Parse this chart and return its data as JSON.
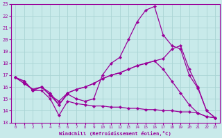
{
  "xlabel": "Windchill (Refroidissement éolien,°C)",
  "bg_color": "#c8eaea",
  "grid_color": "#aad4d4",
  "line_color": "#990099",
  "xlim": [
    -0.5,
    23.5
  ],
  "ylim": [
    13,
    23
  ],
  "xticks": [
    0,
    1,
    2,
    3,
    4,
    5,
    6,
    7,
    8,
    9,
    10,
    11,
    12,
    13,
    14,
    15,
    16,
    17,
    18,
    19,
    20,
    21,
    22,
    23
  ],
  "yticks": [
    13,
    14,
    15,
    16,
    17,
    18,
    19,
    20,
    21,
    22,
    23
  ],
  "series1_x": [
    0,
    1,
    2,
    3,
    4,
    5,
    6,
    7,
    8,
    9,
    10,
    11,
    12,
    13,
    14,
    15,
    16,
    17,
    18,
    19,
    20,
    21,
    22,
    23
  ],
  "series1_y": [
    16.8,
    16.5,
    15.7,
    15.7,
    15.0,
    13.6,
    14.8,
    14.6,
    14.5,
    14.4,
    14.4,
    14.3,
    14.3,
    14.2,
    14.2,
    14.1,
    14.1,
    14.0,
    14.0,
    13.9,
    13.9,
    13.8,
    13.5,
    13.4
  ],
  "series2_x": [
    0,
    1,
    2,
    3,
    4,
    5,
    6,
    7,
    8,
    9,
    10,
    11,
    12,
    13,
    14,
    15,
    16,
    17,
    18,
    19,
    20,
    21,
    22,
    23
  ],
  "series2_y": [
    16.8,
    16.5,
    15.7,
    16.0,
    15.5,
    14.5,
    15.4,
    15.0,
    14.8,
    15.0,
    17.0,
    18.0,
    18.5,
    20.0,
    21.5,
    22.5,
    22.8,
    20.4,
    19.5,
    19.2,
    17.0,
    15.9,
    14.0,
    13.4
  ],
  "series3_x": [
    0,
    1,
    2,
    3,
    4,
    5,
    6,
    7,
    8,
    9,
    10,
    11,
    12,
    13,
    14,
    15,
    16,
    17,
    18,
    19,
    20,
    21,
    22,
    23
  ],
  "series3_y": [
    16.8,
    16.3,
    15.8,
    16.0,
    15.3,
    14.8,
    15.5,
    15.8,
    16.0,
    16.3,
    16.7,
    17.0,
    17.2,
    17.5,
    17.8,
    18.0,
    18.2,
    18.4,
    19.2,
    19.5,
    17.5,
    16.0,
    14.0,
    13.4
  ],
  "series4_x": [
    0,
    1,
    2,
    3,
    4,
    5,
    6,
    7,
    8,
    9,
    10,
    11,
    12,
    13,
    14,
    15,
    16,
    17,
    18,
    19,
    20,
    21,
    22,
    23
  ],
  "series4_y": [
    16.8,
    16.3,
    15.8,
    16.0,
    15.3,
    14.5,
    15.5,
    15.8,
    16.0,
    16.3,
    16.7,
    17.0,
    17.2,
    17.5,
    17.8,
    18.0,
    18.2,
    17.5,
    16.5,
    15.5,
    14.5,
    13.8,
    13.5,
    13.4
  ]
}
